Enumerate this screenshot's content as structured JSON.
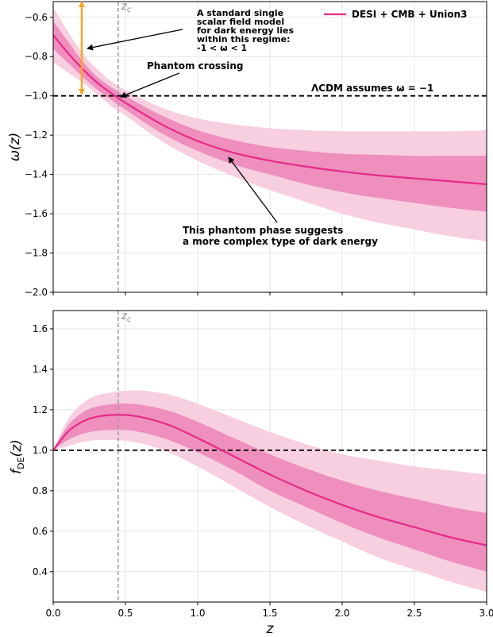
{
  "colors": {
    "band_outer": "#f7cfe1",
    "band_inner": "#ee8fbd",
    "line": "#e7298a",
    "arrow_orange": "#f5a623",
    "grid": "#e6e6e6",
    "dashed": "#000000",
    "zc_line": "#999999"
  },
  "chart_data": [
    {
      "type": "line",
      "panel": "top",
      "ylabel": "ω(z)",
      "xlim": [
        0,
        3
      ],
      "ylim": [
        -2.0,
        -0.52
      ],
      "xticks": [
        0.0,
        0.5,
        1.0,
        1.5,
        2.0,
        2.5,
        3.0
      ],
      "xtick_labels": [
        "0.0",
        "0.5",
        "1.0",
        "1.5",
        "2.0",
        "2.5",
        "3.0"
      ],
      "yticks": [
        -2.0,
        -1.8,
        -1.6,
        -1.4,
        -1.2,
        -1.0,
        -0.8,
        -0.6
      ],
      "ytick_labels": [
        "−2.0",
        "−1.8",
        "−1.6",
        "−1.4",
        "−1.2",
        "−1.0",
        "−0.8",
        "−0.6"
      ],
      "grid": true,
      "reference_y": -1.0,
      "zc": 0.45,
      "zc_label": "z",
      "zc_sub": "c",
      "legend": {
        "placement": "top-right",
        "label": "DESI + CMB + Union3"
      },
      "series": [
        {
          "name": "DESI + CMB + Union3",
          "x": [
            0,
            0.1,
            0.2,
            0.3,
            0.4,
            0.5,
            0.75,
            1.0,
            1.25,
            1.5,
            1.75,
            2.0,
            2.25,
            2.5,
            2.75,
            3.0
          ],
          "y": [
            -0.69,
            -0.78,
            -0.86,
            -0.93,
            -0.985,
            -1.035,
            -1.145,
            -1.23,
            -1.29,
            -1.33,
            -1.36,
            -1.385,
            -1.405,
            -1.42,
            -1.435,
            -1.45
          ],
          "inner_lower": [
            -0.76,
            -0.83,
            -0.9,
            -0.965,
            -1.02,
            -1.07,
            -1.19,
            -1.28,
            -1.35,
            -1.4,
            -1.45,
            -1.49,
            -1.52,
            -1.545,
            -1.57,
            -1.59
          ],
          "inner_upper": [
            -0.62,
            -0.72,
            -0.82,
            -0.9,
            -0.955,
            -1.0,
            -1.1,
            -1.175,
            -1.225,
            -1.26,
            -1.28,
            -1.295,
            -1.3,
            -1.305,
            -1.305,
            -1.305
          ],
          "outer_lower": [
            -0.83,
            -0.88,
            -0.93,
            -0.99,
            -1.05,
            -1.1,
            -1.23,
            -1.33,
            -1.41,
            -1.48,
            -1.54,
            -1.6,
            -1.645,
            -1.68,
            -1.715,
            -1.74
          ],
          "outer_upper": [
            -0.55,
            -0.67,
            -0.78,
            -0.86,
            -0.925,
            -0.97,
            -1.06,
            -1.115,
            -1.145,
            -1.165,
            -1.175,
            -1.18,
            -1.18,
            -1.18,
            -1.18,
            -1.175
          ]
        }
      ],
      "annotations": {
        "scalar_field": [
          "A standard single",
          "scalar field model",
          "for dark energy lies",
          "within this regime:",
          "-1 < ω < 1"
        ],
        "phantom_crossing": "Phantom crossing",
        "lcdm": "ΛCDM assumes ω = −1",
        "phantom_phase": [
          "This phantom phase suggests",
          "a more complex type of dark energy"
        ]
      }
    },
    {
      "type": "line",
      "panel": "bottom",
      "xlabel": "z",
      "ylabel": "f_DE(z)",
      "ylabel_main": "f",
      "ylabel_sub": "DE",
      "ylabel_tail": "(z)",
      "xlim": [
        0,
        3
      ],
      "ylim": [
        0.25,
        1.69
      ],
      "xticks": [
        0.0,
        0.5,
        1.0,
        1.5,
        2.0,
        2.5,
        3.0
      ],
      "xtick_labels": [
        "0.0",
        "0.5",
        "1.0",
        "1.5",
        "2.0",
        "2.5",
        "3.0"
      ],
      "yticks": [
        0.4,
        0.6,
        0.8,
        1.0,
        1.2,
        1.4,
        1.6
      ],
      "ytick_labels": [
        "0.4",
        "0.6",
        "0.8",
        "1.0",
        "1.2",
        "1.4",
        "1.6"
      ],
      "grid": true,
      "reference_y": 1.0,
      "zc": 0.45,
      "zc_label": "z",
      "zc_sub": "c",
      "series": [
        {
          "name": "DESI + CMB + Union3",
          "x": [
            0,
            0.1,
            0.2,
            0.3,
            0.45,
            0.6,
            0.8,
            1.0,
            1.25,
            1.5,
            1.75,
            2.0,
            2.25,
            2.5,
            2.75,
            3.0
          ],
          "y": [
            1.0,
            1.09,
            1.14,
            1.165,
            1.175,
            1.165,
            1.125,
            1.06,
            0.97,
            0.88,
            0.8,
            0.73,
            0.67,
            0.62,
            0.57,
            0.53
          ],
          "inner_lower": [
            1.0,
            1.05,
            1.08,
            1.095,
            1.1,
            1.09,
            1.05,
            0.99,
            0.9,
            0.8,
            0.72,
            0.64,
            0.57,
            0.51,
            0.45,
            0.4
          ],
          "inner_upper": [
            1.0,
            1.12,
            1.185,
            1.215,
            1.23,
            1.225,
            1.195,
            1.14,
            1.06,
            0.98,
            0.91,
            0.85,
            0.8,
            0.76,
            0.72,
            0.69
          ],
          "outer_lower": [
            1.0,
            1.02,
            1.04,
            1.05,
            1.05,
            1.035,
            0.99,
            0.92,
            0.82,
            0.72,
            0.63,
            0.55,
            0.47,
            0.41,
            0.35,
            0.3
          ],
          "outer_upper": [
            1.0,
            1.15,
            1.23,
            1.27,
            1.29,
            1.295,
            1.275,
            1.23,
            1.16,
            1.09,
            1.03,
            0.98,
            0.95,
            0.92,
            0.9,
            0.88
          ]
        }
      ]
    }
  ]
}
